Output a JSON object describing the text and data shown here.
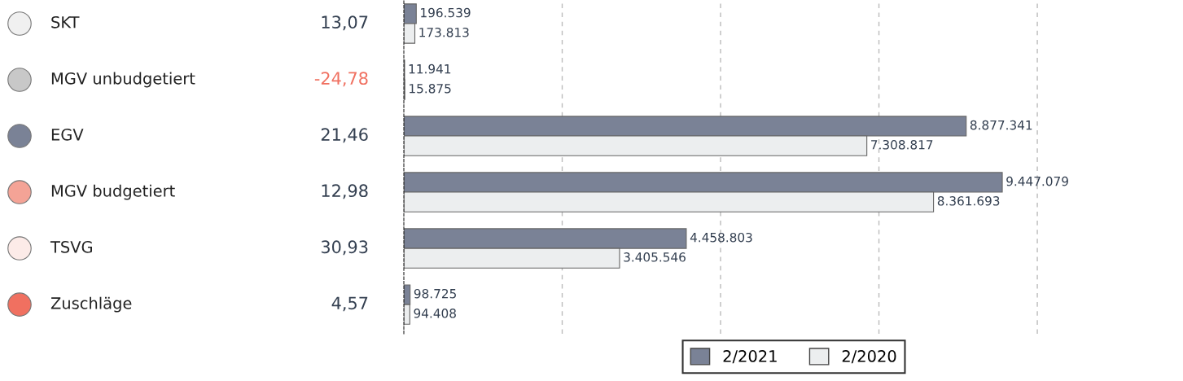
{
  "chart_data": {
    "type": "bar",
    "orientation": "horizontal",
    "categories": [
      "SKT",
      "MGV unbudgetiert",
      "EGV",
      "MGV budgetiert",
      "TSVG",
      "Zuschläge"
    ],
    "series": [
      {
        "name": "2/2021",
        "color": "#7a8296",
        "values": [
          196539,
          11941,
          8877341,
          9447079,
          4458803,
          98725
        ],
        "value_labels": [
          "196.539",
          "11.941",
          "8.877.341",
          "9.447.079",
          "4.458.803",
          "98.725"
        ]
      },
      {
        "name": "2/2020",
        "color": "#eceeef",
        "values": [
          173813,
          15875,
          7308817,
          8361693,
          3405546,
          94408
        ],
        "value_labels": [
          "173.813",
          "15.875",
          "7.308.817",
          "8.361.693",
          "3.405.546",
          "94.408"
        ]
      }
    ],
    "xticks": [
      {
        "value": 2500000,
        "label": null
      },
      {
        "value": 5000000,
        "label": null
      },
      {
        "value": 7500000,
        "label": null
      },
      {
        "value": 10000000,
        "label": null
      }
    ],
    "grid": "x",
    "legend": "bottom",
    "annotations": [
      "13,07",
      "-24,78",
      "21,46",
      "12,98",
      "30,93",
      "4,57"
    ]
  }
}
